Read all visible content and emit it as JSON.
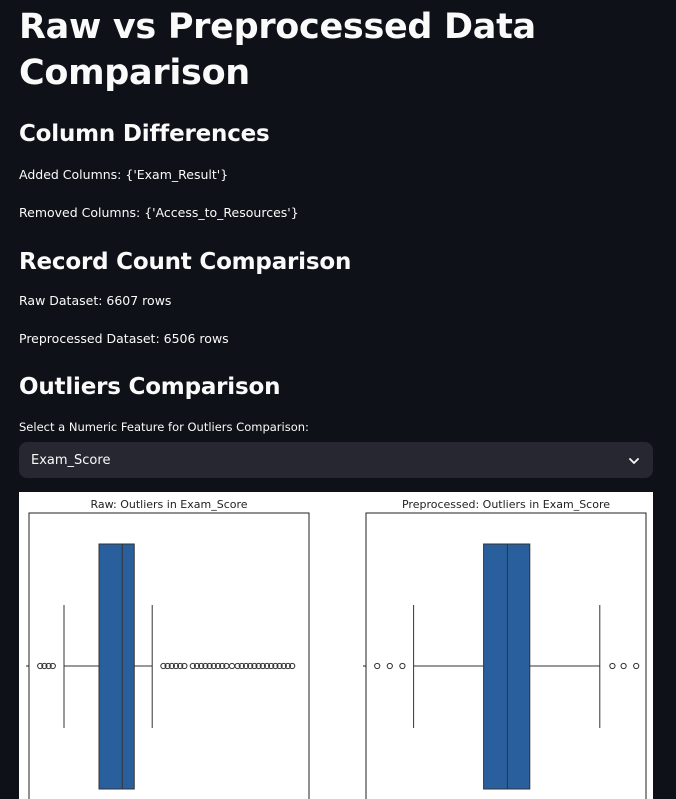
{
  "page": {
    "title": "Raw vs Preprocessed Data Comparison"
  },
  "column_differences": {
    "heading": "Column Differences",
    "added": "Added Columns: {'Exam_Result'}",
    "removed": "Removed Columns: {'Access_to_Resources'}"
  },
  "record_count": {
    "heading": "Record Count Comparison",
    "raw": "Raw Dataset: 6607 rows",
    "preprocessed": "Preprocessed Dataset: 6506 rows"
  },
  "outliers": {
    "heading": "Outliers Comparison",
    "select_label": "Select a Numeric Feature for Outliers Comparison:",
    "selected_value": "Exam_Score"
  },
  "colors": {
    "background": "#0e1117",
    "select_bg": "#262730",
    "box_fill": "#2a5f9e"
  },
  "chart_data": [
    {
      "type": "boxplot",
      "title": "Raw: Outliers in Exam_Score",
      "orientation": "horizontal",
      "box": {
        "whisker_low": 0.125,
        "q1": 0.25,
        "median": 0.333,
        "q3": 0.333,
        "whisker_high": 0.44
      },
      "outliers": [
        0.04,
        0.055,
        0.07,
        0.085,
        0.48,
        0.495,
        0.51,
        0.525,
        0.54,
        0.555,
        0.585,
        0.6,
        0.615,
        0.63,
        0.645,
        0.66,
        0.675,
        0.69,
        0.705,
        0.725,
        0.745,
        0.76,
        0.775,
        0.79,
        0.805,
        0.82,
        0.835,
        0.85,
        0.865,
        0.88,
        0.895,
        0.91,
        0.925,
        0.94
      ]
    },
    {
      "type": "boxplot",
      "title": "Preprocessed: Outliers in Exam_Score",
      "orientation": "horizontal",
      "box": {
        "whisker_low": 0.17,
        "q1": 0.42,
        "median": 0.505,
        "q3": 0.585,
        "whisker_high": 0.835
      },
      "outliers": [
        0.04,
        0.085,
        0.13,
        0.88,
        0.92,
        0.965
      ]
    }
  ]
}
